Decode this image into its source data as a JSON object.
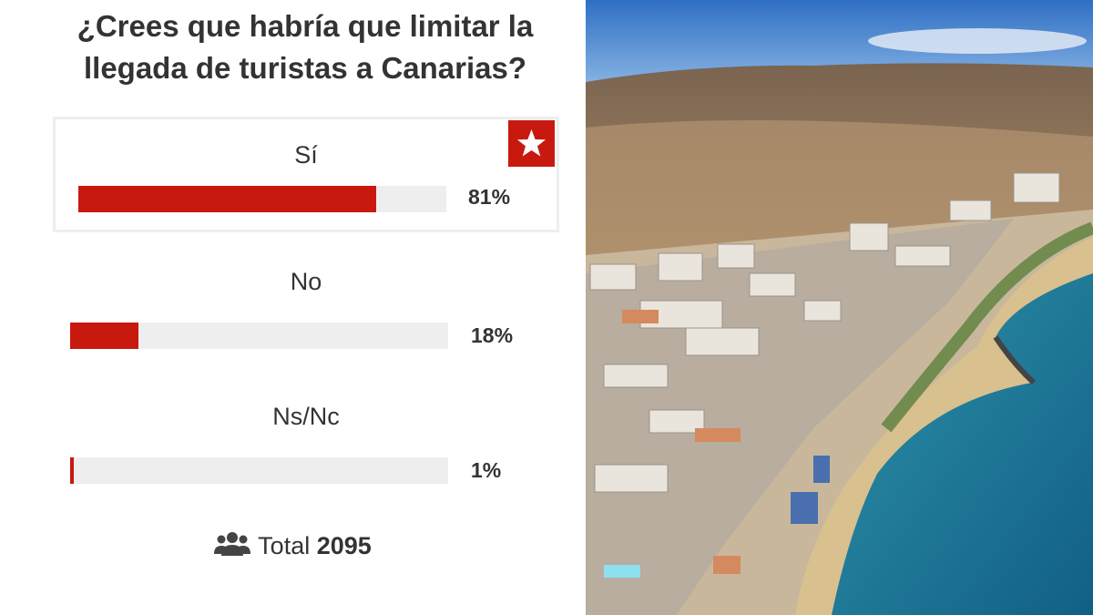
{
  "poll": {
    "title": "¿Crees que habría que limitar la llegada de turistas a Canarias?",
    "options": [
      {
        "label": "Sí",
        "value": 81,
        "value_label": "81%"
      },
      {
        "label": "No",
        "value": 18,
        "value_label": "18%"
      },
      {
        "label": "Ns/Nc",
        "value": 1,
        "value_label": "1%"
      }
    ],
    "total_label": "Total",
    "total": 2095
  }
}
